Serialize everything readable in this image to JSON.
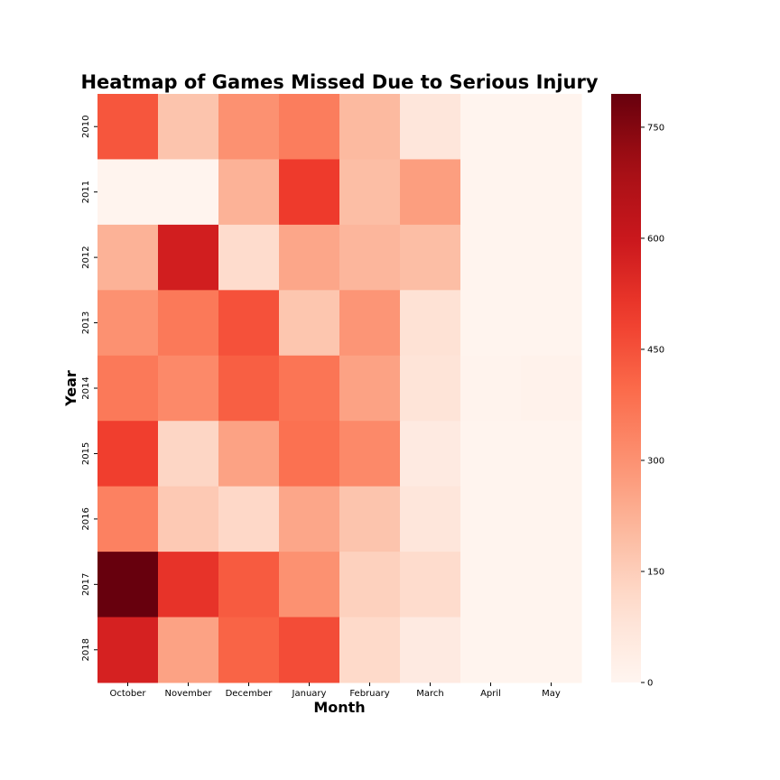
{
  "chart_data": {
    "type": "heatmap",
    "title": "Heatmap of Games Missed Due to Serious Injury",
    "xlabel": "Month",
    "ylabel": "Year",
    "columns": [
      "October",
      "November",
      "December",
      "January",
      "February",
      "March",
      "April",
      "May"
    ],
    "rows": [
      "2010",
      "2011",
      "2012",
      "2013",
      "2014",
      "2015",
      "2016",
      "2017",
      "2018"
    ],
    "values": [
      [
        440,
        175,
        300,
        350,
        200,
        70,
        5,
        5
      ],
      [
        5,
        5,
        220,
        500,
        190,
        270,
        5,
        5
      ],
      [
        220,
        580,
        110,
        250,
        210,
        190,
        5,
        5
      ],
      [
        300,
        360,
        450,
        170,
        290,
        90,
        5,
        5
      ],
      [
        360,
        320,
        420,
        370,
        260,
        80,
        10,
        15
      ],
      [
        490,
        125,
        260,
        380,
        320,
        50,
        5,
        5
      ],
      [
        340,
        160,
        120,
        250,
        175,
        70,
        5,
        5
      ],
      [
        795,
        520,
        430,
        300,
        140,
        110,
        5,
        5
      ],
      [
        570,
        260,
        410,
        460,
        115,
        50,
        5,
        5
      ]
    ],
    "vmin": 0,
    "vmax": 795,
    "colormap": "Reds",
    "colorbar": {
      "ticks": [
        0,
        150,
        300,
        450,
        600,
        750
      ]
    }
  }
}
